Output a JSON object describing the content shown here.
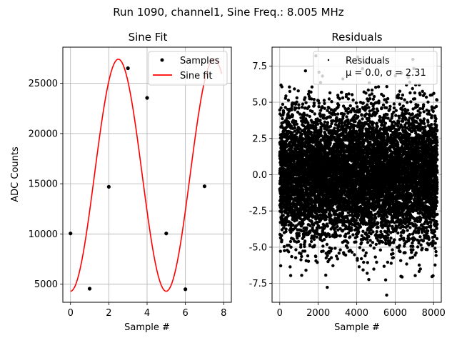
{
  "figure": {
    "suptitle": "Run 1090, channel1, Sine Freq.: 8.005 MHz"
  },
  "chart_data": [
    {
      "type": "line",
      "title": "Sine Fit",
      "xlabel": "Sample #",
      "ylabel": "ADC Counts",
      "xlim": [
        -0.4,
        8.4
      ],
      "ylim": [
        3200,
        28600
      ],
      "xticks": [
        0,
        2,
        4,
        6,
        8
      ],
      "yticks": [
        5000,
        10000,
        15000,
        20000,
        25000
      ],
      "grid": true,
      "legend": {
        "placement": "top-right",
        "entries": [
          "Samples",
          "Sine fit"
        ]
      },
      "samples": {
        "name": "Samples",
        "x": [
          0,
          1,
          2,
          3,
          4,
          5,
          6,
          7
        ],
        "y": [
          10050,
          4550,
          14700,
          26500,
          23550,
          10050,
          4500,
          14750
        ],
        "color": "#000000"
      },
      "fit": {
        "name": "Sine fit",
        "color": "#ff0000",
        "offset": 15850,
        "amplitude": 11550,
        "period": 4.996875,
        "phase_sample": 0.0
      }
    },
    {
      "type": "scatter",
      "title": "Residuals",
      "xlabel": "Sample #",
      "ylabel": "",
      "xlim": [
        -400,
        8400
      ],
      "ylim": [
        -8.8,
        8.8
      ],
      "xticks": [
        0,
        2000,
        4000,
        6000,
        8000
      ],
      "yticks": [
        -7.5,
        -5.0,
        -2.5,
        0.0,
        2.5,
        5.0,
        7.5
      ],
      "grid": true,
      "legend": {
        "placement": "top-right",
        "entries": [
          "Residuals",
          "μ = 0.0, σ = 2.31"
        ]
      },
      "series": {
        "name": "Residuals",
        "n_points": 8192,
        "mean": 0.0,
        "sigma": 2.31,
        "color": "#000000"
      }
    }
  ]
}
